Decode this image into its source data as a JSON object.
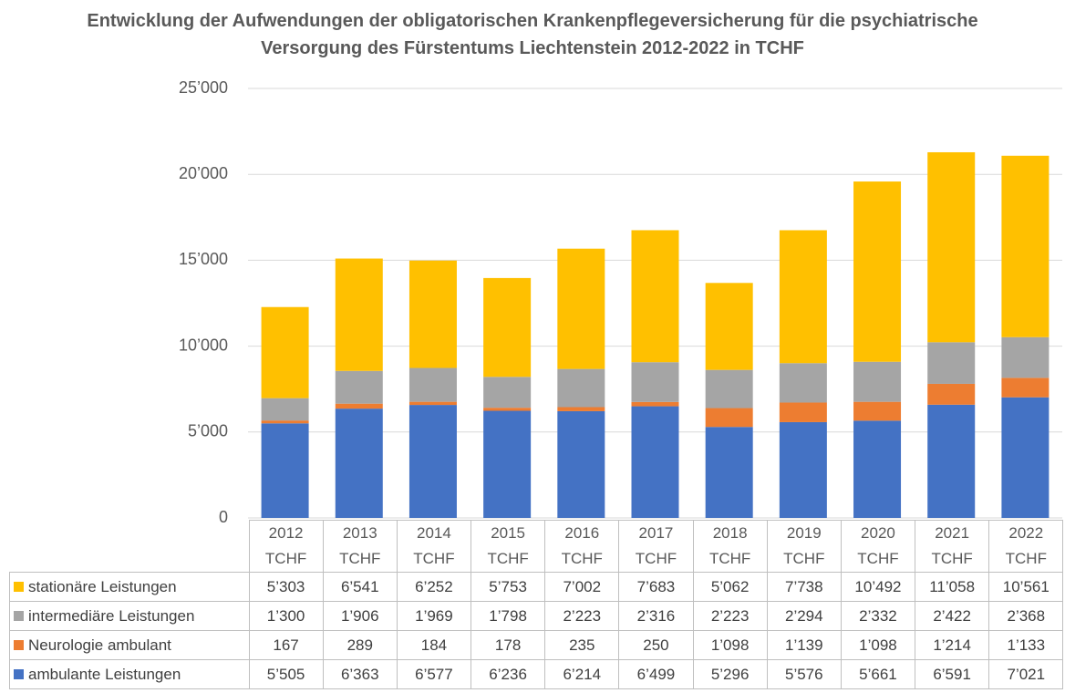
{
  "chart_data": {
    "type": "stacked_bar",
    "title": "Entwicklung der Aufwendungen der obligatorischen Krankenpflegeversicherung für die psychiatrische Versorgung des Fürstentums Liechtenstein 2012-2022 in TCHF",
    "categories": [
      "2012 TCHF",
      "2013 TCHF",
      "2014 TCHF",
      "2015 TCHF",
      "2016 TCHF",
      "2017 TCHF",
      "2018 TCHF",
      "2019 TCHF",
      "2020 TCHF",
      "2021 TCHF",
      "2022 TCHF"
    ],
    "series": [
      {
        "name": "ambulante Leistungen",
        "color": "#4472c4",
        "values": [
          5505,
          6363,
          6577,
          6236,
          6214,
          6499,
          5296,
          5576,
          5661,
          6591,
          7021
        ],
        "value_labels": [
          "5’505",
          "6’363",
          "6’577",
          "6’236",
          "6’214",
          "6’499",
          "5’296",
          "5’576",
          "5’661",
          "6’591",
          "7’021"
        ]
      },
      {
        "name": "Neurologie ambulant",
        "color": "#ed7d31",
        "values": [
          167,
          289,
          184,
          178,
          235,
          250,
          1098,
          1139,
          1098,
          1214,
          1133
        ],
        "value_labels": [
          "167",
          "289",
          "184",
          "178",
          "235",
          "250",
          "1’098",
          "1’139",
          "1’098",
          "1’214",
          "1’133"
        ]
      },
      {
        "name": "intermediäre Leistungen",
        "color": "#a5a5a5",
        "values": [
          1300,
          1906,
          1969,
          1798,
          2223,
          2316,
          2223,
          2294,
          2332,
          2422,
          2368
        ],
        "value_labels": [
          "1’300",
          "1’906",
          "1’969",
          "1’798",
          "2’223",
          "2’316",
          "2’223",
          "2’294",
          "2’332",
          "2’422",
          "2’368"
        ]
      },
      {
        "name": "stationäre Leistungen",
        "color": "#ffc000",
        "values": [
          5303,
          6541,
          6252,
          5753,
          7002,
          7683,
          5062,
          7738,
          10492,
          11058,
          10561
        ],
        "value_labels": [
          "5’303",
          "6’541",
          "6’252",
          "5’753",
          "7’002",
          "7’683",
          "5’062",
          "7’738",
          "10’492",
          "11’058",
          "10’561"
        ]
      }
    ],
    "ylim": [
      0,
      25000
    ],
    "yticks": [
      0,
      {
        "value": 5000,
        "label": "5’000"
      },
      {
        "value": 10000,
        "label": "10’000"
      },
      {
        "value": 15000,
        "label": "15’000"
      },
      {
        "value": 20000,
        "label": "20’000"
      },
      {
        "value": 25000,
        "label": "25’000"
      }
    ],
    "grid": true
  }
}
